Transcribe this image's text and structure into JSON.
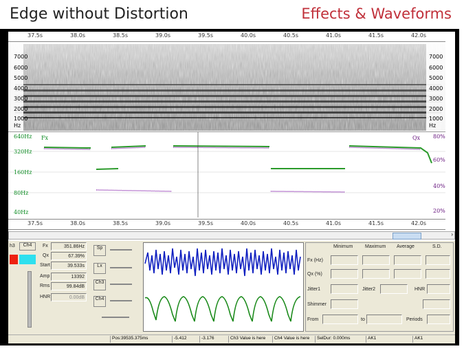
{
  "header": {
    "title": "Edge without Distortion",
    "subtitle": "Effects & Waveforms"
  },
  "ruler": {
    "ticks": [
      "37.5s",
      "38.0s",
      "38.5s",
      "39.0s",
      "39.5s",
      "40.0s",
      "40.5s",
      "41.0s",
      "41.5s",
      "42.0s"
    ]
  },
  "spectrogram": {
    "freq_labels": [
      "7000",
      "6000",
      "5000",
      "4000",
      "3000",
      "2000",
      "1000",
      "Hz"
    ]
  },
  "pitch": {
    "left_labels": [
      "640Hz",
      "320Hz",
      "160Hz",
      "80Hz",
      "40Hz"
    ],
    "fx_tag": "Fx",
    "qx_tag": "Qx",
    "right_labels": [
      "80%",
      "60%",
      "40%",
      "20%"
    ]
  },
  "controls": {
    "ch3": "h3",
    "ch4": "Ch4",
    "fx_label": "Fx",
    "fx_value": "351.86Hz",
    "qx_label": "Qx",
    "qx_value": "67.39%",
    "start_label": "Start",
    "start_value": "39.533s",
    "amp_label": "Amp",
    "amp_value": "13392",
    "rms_label": "Rms",
    "rms_value": "99.84dB",
    "hnr_label": "HNR",
    "hnr_value": "0.00dB",
    "sp": "Sp",
    "lx": "Lx",
    "ch3b": "Ch3",
    "ch4b": "Ch4",
    "stats_headers": [
      "Minimum",
      "Maximum",
      "Average",
      "S.D."
    ],
    "fx_hz": "Fx (Hz)",
    "qx_pct": "Qx (%)",
    "jitter1": "Jitter1",
    "jitter2": "Jitter2",
    "hnr": "HNR",
    "shimmer": "Shimmer",
    "from": "From",
    "to": "to",
    "periods": "Periods"
  },
  "status": {
    "pos": "Pos:39535.375ms",
    "v1": "-5.412",
    "v2": "-3.176",
    "ch3v": "Ch3 Value is here",
    "ch4v": "Ch4 Value is here",
    "seldur": "SelDur: 0.000ms",
    "ak1": "AK1",
    "ak2": "AK1"
  }
}
